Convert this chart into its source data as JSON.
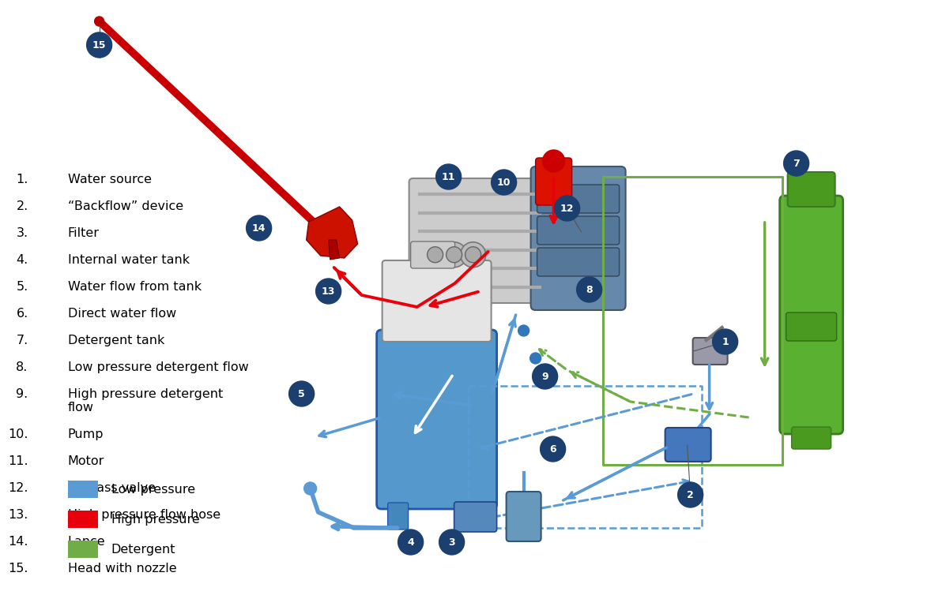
{
  "bg_color": "#ffffff",
  "fig_w": 11.46,
  "fig_h": 7.54,
  "legend_items": [
    {
      "label": "Low pressure",
      "color": "#5B9BD5"
    },
    {
      "label": "High pressure",
      "color": "#E8000B"
    },
    {
      "label": "Detergent",
      "color": "#70AD47"
    }
  ],
  "numbered_items": [
    {
      "num": "1.",
      "text": "Water source"
    },
    {
      "num": "2.",
      "text": "“Backflow” device"
    },
    {
      "num": "3.",
      "text": "Filter"
    },
    {
      "num": "4.",
      "text": "Internal water tank"
    },
    {
      "num": "5.",
      "text": "Water flow from tank"
    },
    {
      "num": "6.",
      "text": "Direct water flow"
    },
    {
      "num": "7.",
      "text": "Detergent tank"
    },
    {
      "num": "8.",
      "text": "Low pressure detergent flow"
    },
    {
      "num": "9.",
      "text": "High pressure detergent\nflow"
    },
    {
      "num": "10.",
      "text": "Pump"
    },
    {
      "num": "11.",
      "text": "Motor"
    },
    {
      "num": "12.",
      "text": "By-pass valve"
    },
    {
      "num": "13.",
      "text": "High pressure flow hose"
    },
    {
      "num": "14.",
      "text": "Lance"
    },
    {
      "num": "15.",
      "text": "Head with nozzle"
    }
  ],
  "badge_fc": "#1B3F6E",
  "badge_tc": "#ffffff",
  "blue": "#5B9BD5",
  "red": "#E8000B",
  "green": "#70AD47",
  "dark_red": "#8B0000"
}
